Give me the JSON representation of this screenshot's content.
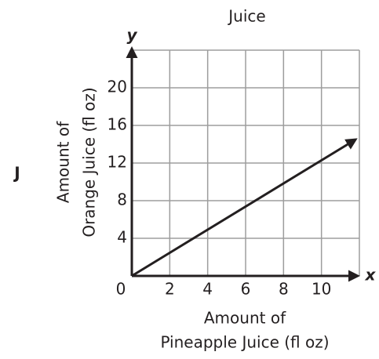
{
  "chart_data": {
    "type": "line",
    "title": "Juice",
    "answer_label": "J",
    "x_axis_letter": "x",
    "y_axis_letter": "y",
    "x_label": [
      "Amount of",
      "Pineapple Juice (fl oz)"
    ],
    "y_label": [
      "Amount of",
      "Orange Juice (fl oz)"
    ],
    "x": [
      0,
      11.8
    ],
    "series": [
      {
        "color": "#231f20",
        "values": [
          0,
          14.5
        ]
      }
    ],
    "xlim": [
      0,
      12
    ],
    "ylim": [
      0,
      24
    ],
    "xticks": [
      0,
      2,
      4,
      6,
      8,
      10
    ],
    "yticks": [
      4,
      8,
      12,
      16,
      20
    ],
    "grid": true
  }
}
